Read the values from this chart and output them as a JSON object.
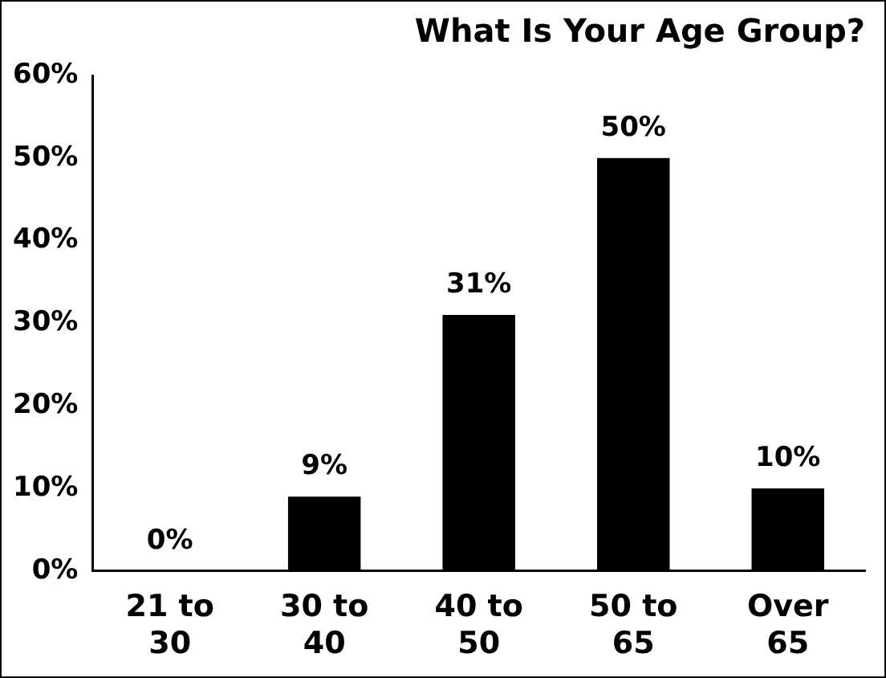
{
  "chart_data": {
    "type": "bar",
    "title": "What Is Your Age Group?",
    "categories": [
      "21 to 30",
      "30 to 40",
      "40 to 50",
      "50 to 65",
      "Over 65"
    ],
    "values": [
      0,
      9,
      31,
      50,
      10
    ],
    "color": "#000000",
    "value_labels": [
      "0%",
      "9%",
      "31%",
      "50%",
      "10%"
    ],
    "ylim": [
      0,
      60
    ],
    "yticks": [
      {
        "value": 0,
        "label": "0%"
      },
      {
        "value": 10,
        "label": "10%"
      },
      {
        "value": 20,
        "label": "20%"
      },
      {
        "value": 30,
        "label": "30%"
      },
      {
        "value": 40,
        "label": "40%"
      },
      {
        "value": 50,
        "label": "50%"
      },
      {
        "value": 60,
        "label": "60%"
      }
    ],
    "grid": false,
    "legend": false
  }
}
